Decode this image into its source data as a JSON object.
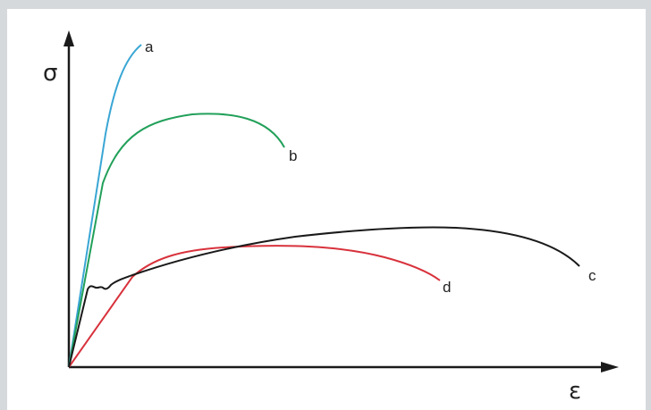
{
  "diagram": {
    "y_axis_symbol": "σ",
    "x_axis_symbol": "ε",
    "curves": [
      {
        "id": "a",
        "label": "a",
        "color": "#3aa6d4"
      },
      {
        "id": "b",
        "label": "b",
        "color": "#22a05a"
      },
      {
        "id": "c",
        "label": "c",
        "color": "#1a1a1a"
      },
      {
        "id": "d",
        "label": "d",
        "color": "#d8323c"
      }
    ],
    "axis_color": "#1a1a1a"
  }
}
